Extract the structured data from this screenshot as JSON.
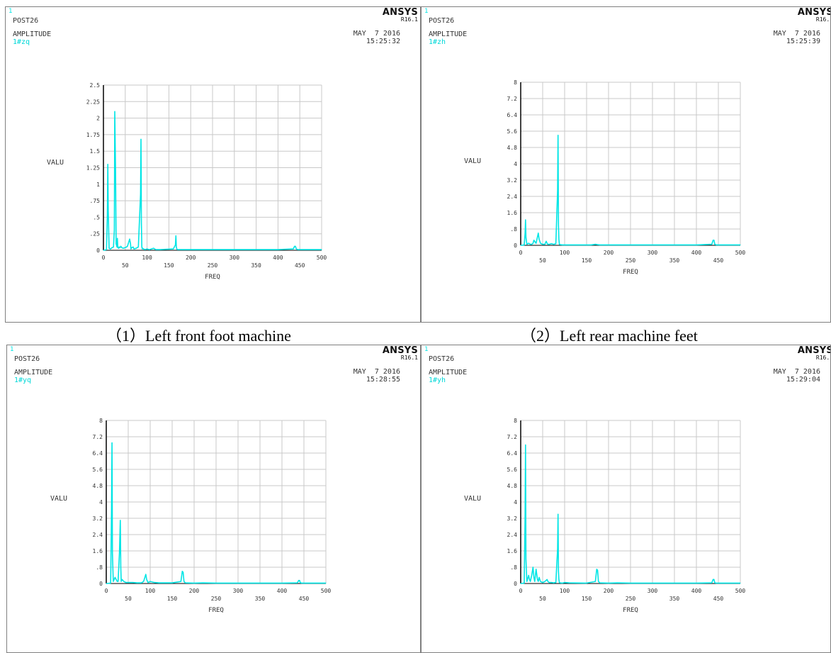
{
  "panels": [
    {
      "corner": "1",
      "post": "POST26",
      "amplitude": "AMPLITUDE",
      "series_label": "1#zq",
      "brand": "ANSYS",
      "version": "R16.1",
      "date": "MAY  7 2016",
      "time": "15:25:32"
    },
    {
      "corner": "1",
      "post": "POST26",
      "amplitude": "AMPLITUDE",
      "series_label": "1#zh",
      "brand": "ANSYS",
      "version": "R16.1",
      "date": "MAY  7 2016",
      "time": "15:25:39"
    },
    {
      "corner": "1",
      "post": "POST26",
      "amplitude": "AMPLITUDE",
      "series_label": "1#yq",
      "brand": "ANSYS",
      "version": "R16.1",
      "date": "MAY  7 2016",
      "time": "15:28:55"
    },
    {
      "corner": "1",
      "post": "POST26",
      "amplitude": "AMPLITUDE",
      "series_label": "1#yh",
      "brand": "ANSYS",
      "version": "R16.1",
      "date": "MAY  7 2016",
      "time": "15:29:04"
    }
  ],
  "captions": [
    "（1）Left front foot machine",
    "（2）Left rear machine feet"
  ],
  "colors": {
    "series": "#00e5e5",
    "grid": "#c8c8c8",
    "axis": "#000000"
  },
  "chart_data": [
    {
      "type": "line",
      "xlabel": "FREQ",
      "ylabel": "VALU",
      "xlim": [
        0,
        500
      ],
      "ylim": [
        0,
        2.5
      ],
      "xticks": [
        {
          "v": 0,
          "l": "0"
        },
        {
          "v": 50,
          "l": "50"
        },
        {
          "v": 100,
          "l": "100"
        },
        {
          "v": 150,
          "l": "150"
        },
        {
          "v": 200,
          "l": "200"
        },
        {
          "v": 250,
          "l": "250"
        },
        {
          "v": 300,
          "l": "300"
        },
        {
          "v": 350,
          "l": "350"
        },
        {
          "v": 400,
          "l": "400"
        },
        {
          "v": 450,
          "l": "450"
        },
        {
          "v": 500,
          "l": "500"
        }
      ],
      "yticks": [
        {
          "v": 0,
          "l": "0"
        },
        {
          "v": 0.25,
          "l": ".25"
        },
        {
          "v": 0.5,
          "l": ".5"
        },
        {
          "v": 0.75,
          "l": ".75"
        },
        {
          "v": 1,
          "l": "1"
        },
        {
          "v": 1.25,
          "l": "1.25"
        },
        {
          "v": 1.5,
          "l": "1.5"
        },
        {
          "v": 1.75,
          "l": "1.75"
        },
        {
          "v": 2,
          "l": "2"
        },
        {
          "v": 2.25,
          "l": "2.25"
        },
        {
          "v": 2.5,
          "l": "2.5"
        }
      ],
      "grid": true,
      "x": [
        0,
        7,
        9,
        10,
        11,
        13,
        16,
        20,
        23,
        25,
        26,
        28,
        29,
        31,
        32,
        33,
        35,
        36,
        38,
        40,
        42,
        45,
        50,
        55,
        60,
        62,
        63,
        65,
        68,
        70,
        75,
        80,
        85,
        86,
        87,
        88,
        89,
        90,
        92,
        95,
        100,
        105,
        110,
        115,
        120,
        125,
        130,
        160,
        165,
        166,
        167,
        168,
        170,
        175,
        180,
        200,
        220,
        250,
        300,
        350,
        400,
        435,
        438,
        440,
        442,
        445,
        500
      ],
      "y": [
        0,
        0.01,
        0.5,
        1.3,
        0.6,
        0.03,
        0.02,
        0.04,
        0.05,
        0.3,
        2.1,
        1.1,
        0.1,
        0.05,
        0.18,
        0.04,
        0.03,
        0.05,
        0.04,
        0.06,
        0.04,
        0.03,
        0.04,
        0.06,
        0.17,
        0.1,
        0.02,
        0.04,
        0.05,
        0.02,
        0.03,
        0.05,
        0.85,
        1.68,
        0.4,
        0.05,
        0.02,
        0.03,
        0.02,
        0.01,
        0.02,
        0.01,
        0.02,
        0.03,
        0.01,
        0.01,
        0.01,
        0.02,
        0.08,
        0.22,
        0.05,
        0.02,
        0.01,
        0.01,
        0.01,
        0.01,
        0.01,
        0.01,
        0.01,
        0.01,
        0.01,
        0.02,
        0.06,
        0.06,
        0.02,
        0.01,
        0.01
      ]
    },
    {
      "type": "line",
      "xlabel": "FREQ",
      "ylabel": "VALU",
      "xlim": [
        0,
        500
      ],
      "ylim": [
        0,
        8
      ],
      "xticks": [
        {
          "v": 0,
          "l": "0"
        },
        {
          "v": 50,
          "l": "50"
        },
        {
          "v": 100,
          "l": "100"
        },
        {
          "v": 150,
          "l": "150"
        },
        {
          "v": 200,
          "l": "200"
        },
        {
          "v": 250,
          "l": "250"
        },
        {
          "v": 300,
          "l": "300"
        },
        {
          "v": 350,
          "l": "350"
        },
        {
          "v": 400,
          "l": "400"
        },
        {
          "v": 450,
          "l": "450"
        },
        {
          "v": 500,
          "l": "500"
        }
      ],
      "yticks": [
        {
          "v": 0,
          "l": "0"
        },
        {
          "v": 0.8,
          "l": ".8"
        },
        {
          "v": 1.6,
          "l": "1.6"
        },
        {
          "v": 2.4,
          "l": "2.4"
        },
        {
          "v": 3.2,
          "l": "3.2"
        },
        {
          "v": 4,
          "l": "4"
        },
        {
          "v": 4.8,
          "l": "4.8"
        },
        {
          "v": 5.6,
          "l": "5.6"
        },
        {
          "v": 6.4,
          "l": "6.4"
        },
        {
          "v": 7.2,
          "l": "7.2"
        },
        {
          "v": 8,
          "l": "8"
        }
      ],
      "grid": true,
      "x": [
        0,
        8,
        10,
        11,
        12,
        14,
        18,
        22,
        25,
        28,
        30,
        35,
        40,
        42,
        45,
        50,
        55,
        58,
        60,
        62,
        65,
        70,
        75,
        80,
        84,
        85,
        86,
        87,
        88,
        90,
        95,
        100,
        110,
        160,
        170,
        175,
        180,
        200,
        220,
        250,
        300,
        350,
        400,
        435,
        438,
        440,
        442,
        445,
        500
      ],
      "y": [
        0,
        0.02,
        0.6,
        1.25,
        0.4,
        0.05,
        0.1,
        0.05,
        0.05,
        0.1,
        0.25,
        0.1,
        0.6,
        0.3,
        0.1,
        0.05,
        0.05,
        0.2,
        0.1,
        0.05,
        0.05,
        0.08,
        0.05,
        0.08,
        2.7,
        5.4,
        1.0,
        0.3,
        0.05,
        0.03,
        0.02,
        0.02,
        0.02,
        0.02,
        0.05,
        0.03,
        0.02,
        0.02,
        0.02,
        0.02,
        0.02,
        0.02,
        0.02,
        0.05,
        0.25,
        0.25,
        0.05,
        0.02,
        0.02
      ]
    },
    {
      "type": "line",
      "xlabel": "FREQ",
      "ylabel": "VALU",
      "xlim": [
        0,
        500
      ],
      "ylim": [
        0,
        8
      ],
      "xticks": [
        {
          "v": 0,
          "l": "0"
        },
        {
          "v": 50,
          "l": "50"
        },
        {
          "v": 100,
          "l": "100"
        },
        {
          "v": 150,
          "l": "150"
        },
        {
          "v": 200,
          "l": "200"
        },
        {
          "v": 250,
          "l": "250"
        },
        {
          "v": 300,
          "l": "300"
        },
        {
          "v": 350,
          "l": "350"
        },
        {
          "v": 400,
          "l": "400"
        },
        {
          "v": 450,
          "l": "450"
        },
        {
          "v": 500,
          "l": "500"
        }
      ],
      "yticks": [
        {
          "v": 0,
          "l": "0"
        },
        {
          "v": 0.8,
          "l": ".8"
        },
        {
          "v": 1.6,
          "l": "1.6"
        },
        {
          "v": 2.4,
          "l": "2.4"
        },
        {
          "v": 3.2,
          "l": "3.2"
        },
        {
          "v": 4,
          "l": "4"
        },
        {
          "v": 4.8,
          "l": "4.8"
        },
        {
          "v": 5.6,
          "l": "5.6"
        },
        {
          "v": 6.4,
          "l": "6.4"
        },
        {
          "v": 7.2,
          "l": "7.2"
        },
        {
          "v": 8,
          "l": "8"
        }
      ],
      "grid": true,
      "x": [
        0,
        10,
        12,
        13,
        14,
        16,
        20,
        25,
        27,
        30,
        32,
        33,
        34,
        36,
        40,
        45,
        50,
        60,
        70,
        75,
        80,
        85,
        90,
        92,
        95,
        100,
        110,
        120,
        150,
        170,
        173,
        175,
        177,
        180,
        200,
        220,
        250,
        300,
        350,
        400,
        435,
        438,
        440,
        442,
        445,
        500
      ],
      "y": [
        0,
        0.02,
        3.5,
        6.9,
        1.5,
        0.1,
        0.3,
        0.1,
        0.1,
        1.5,
        3.1,
        0.8,
        0.1,
        0.2,
        0.1,
        0.05,
        0.05,
        0.05,
        0.03,
        0.03,
        0.03,
        0.1,
        0.45,
        0.2,
        0.05,
        0.1,
        0.05,
        0.03,
        0.03,
        0.1,
        0.6,
        0.55,
        0.1,
        0.03,
        0.02,
        0.03,
        0.02,
        0.02,
        0.02,
        0.02,
        0.03,
        0.15,
        0.15,
        0.03,
        0.02,
        0.02
      ]
    },
    {
      "type": "line",
      "xlabel": "FREQ",
      "ylabel": "VALU",
      "xlim": [
        0,
        500
      ],
      "ylim": [
        0,
        8
      ],
      "xticks": [
        {
          "v": 0,
          "l": "0"
        },
        {
          "v": 50,
          "l": "50"
        },
        {
          "v": 100,
          "l": "100"
        },
        {
          "v": 150,
          "l": "150"
        },
        {
          "v": 200,
          "l": "200"
        },
        {
          "v": 250,
          "l": "250"
        },
        {
          "v": 300,
          "l": "300"
        },
        {
          "v": 350,
          "l": "350"
        },
        {
          "v": 400,
          "l": "400"
        },
        {
          "v": 450,
          "l": "450"
        },
        {
          "v": 500,
          "l": "500"
        }
      ],
      "yticks": [
        {
          "v": 0,
          "l": "0"
        },
        {
          "v": 0.8,
          "l": ".8"
        },
        {
          "v": 1.6,
          "l": "1.6"
        },
        {
          "v": 2.4,
          "l": "2.4"
        },
        {
          "v": 3.2,
          "l": "3.2"
        },
        {
          "v": 4,
          "l": "4"
        },
        {
          "v": 4.8,
          "l": "4.8"
        },
        {
          "v": 5.6,
          "l": "5.6"
        },
        {
          "v": 6.4,
          "l": "6.4"
        },
        {
          "v": 7.2,
          "l": "7.2"
        },
        {
          "v": 8,
          "l": "8"
        }
      ],
      "grid": true,
      "x": [
        0,
        8,
        10,
        11,
        12,
        14,
        18,
        20,
        22,
        25,
        28,
        30,
        32,
        35,
        38,
        40,
        42,
        45,
        50,
        55,
        60,
        62,
        65,
        70,
        75,
        80,
        84,
        85,
        86,
        87,
        88,
        90,
        95,
        100,
        110,
        150,
        170,
        173,
        175,
        177,
        180,
        200,
        220,
        250,
        300,
        350,
        400,
        435,
        438,
        440,
        442,
        445,
        500
      ],
      "y": [
        0,
        0.02,
        3.4,
        6.8,
        1.2,
        0.1,
        0.4,
        0.2,
        0.1,
        0.4,
        0.8,
        0.3,
        0.1,
        0.7,
        0.2,
        0.1,
        0.3,
        0.1,
        0.05,
        0.1,
        0.2,
        0.1,
        0.05,
        0.05,
        0.03,
        0.05,
        1.7,
        3.4,
        0.6,
        0.2,
        0.05,
        0.03,
        0.02,
        0.05,
        0.03,
        0.02,
        0.1,
        0.7,
        0.65,
        0.1,
        0.03,
        0.02,
        0.03,
        0.02,
        0.02,
        0.02,
        0.02,
        0.03,
        0.2,
        0.2,
        0.03,
        0.02,
        0.02
      ]
    }
  ]
}
